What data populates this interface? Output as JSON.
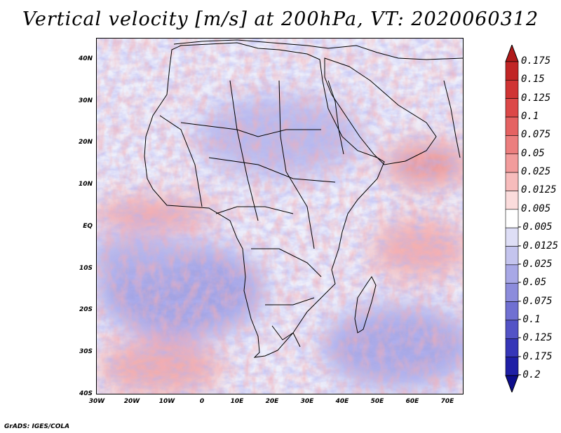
{
  "title": "Vertical velocity [m/s] at 200hPa, VT: 2020060312",
  "credit": "GrADS: IGES/COLA",
  "map": {
    "lat_labels": [
      "40N",
      "30N",
      "20N",
      "10N",
      "EQ",
      "10S",
      "20S",
      "30S",
      "40S"
    ],
    "lon_labels": [
      "30W",
      "20W",
      "10W",
      "0",
      "10E",
      "20E",
      "30E",
      "40E",
      "50E",
      "60E",
      "70E"
    ],
    "lon_range": [
      -30,
      75
    ],
    "lat_range": [
      -40,
      45
    ]
  },
  "colorbar": {
    "labels": [
      "0.175",
      "0.15",
      "0.125",
      "0.1",
      "0.075",
      "0.05",
      "0.025",
      "0.0125",
      "0.005",
      "-0.005",
      "-0.0125",
      "-0.025",
      "-0.05",
      "-0.075",
      "-0.1",
      "-0.125",
      "-0.175",
      "-0.2"
    ],
    "colors": [
      "#b01a1a",
      "#c12525",
      "#d03434",
      "#dc4848",
      "#e56262",
      "#ec7e7e",
      "#f29c9c",
      "#f7bcbc",
      "#fbdcdc",
      "#ffffff",
      "#dedef6",
      "#c4c4ee",
      "#a8a8e6",
      "#8c8cdc",
      "#7070d2",
      "#5353c6",
      "#3636b8",
      "#1f1fa6",
      "#0d0d8c"
    ]
  }
}
